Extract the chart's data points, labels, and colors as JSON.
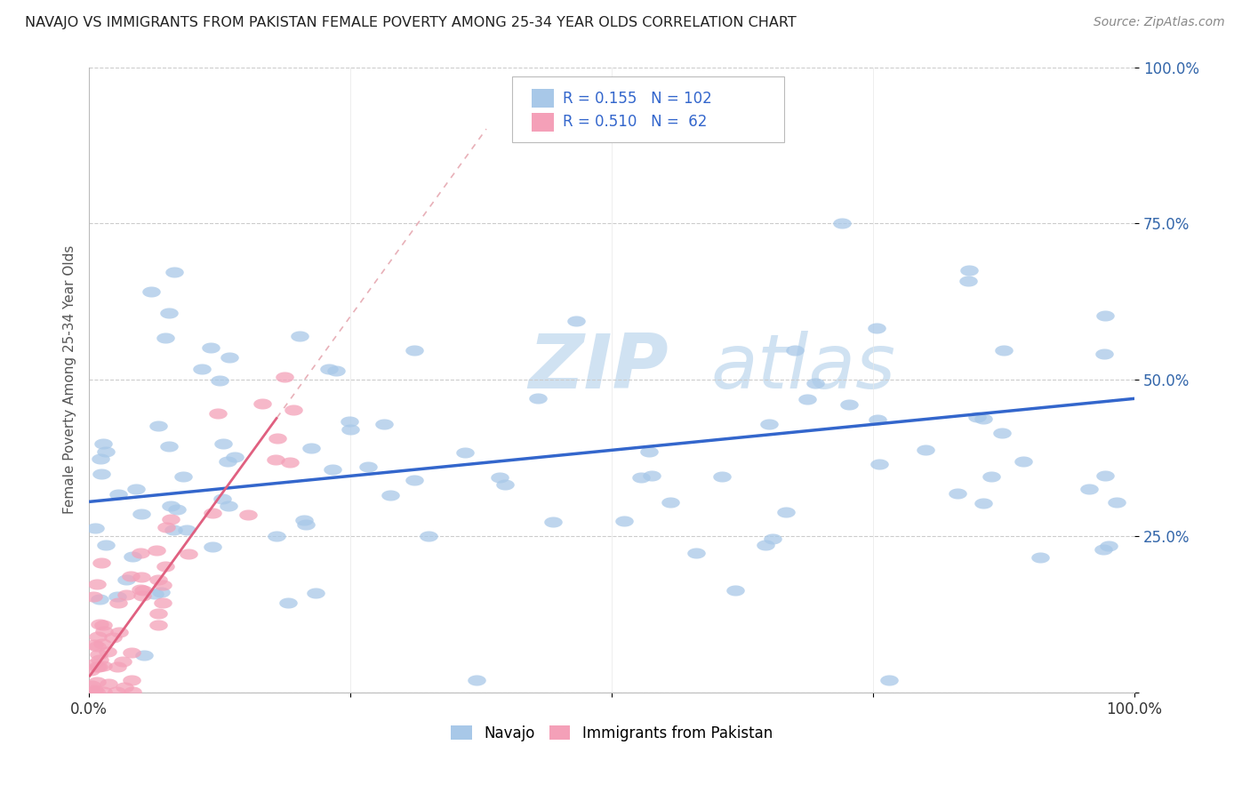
{
  "title": "NAVAJO VS IMMIGRANTS FROM PAKISTAN FEMALE POVERTY AMONG 25-34 YEAR OLDS CORRELATION CHART",
  "source": "Source: ZipAtlas.com",
  "ylabel": "Female Poverty Among 25-34 Year Olds",
  "xlim": [
    0,
    1
  ],
  "ylim": [
    0,
    1
  ],
  "navajo_R": 0.155,
  "navajo_N": 102,
  "pakistan_R": 0.51,
  "pakistan_N": 62,
  "navajo_color": "#a8c8e8",
  "pakistan_color": "#f4a0b8",
  "navajo_line_color": "#3366cc",
  "pakistan_line_color": "#e06080",
  "watermark_zip": "ZIP",
  "watermark_atlas": "atlas",
  "background_color": "#ffffff",
  "navajo_line_x0": 0.0,
  "navajo_line_y0": 0.305,
  "navajo_line_x1": 1.0,
  "navajo_line_y1": 0.47,
  "pakistan_line_x0": 0.0,
  "pakistan_line_y0": 0.025,
  "pakistan_line_x1": 0.18,
  "pakistan_line_y1": 0.44
}
